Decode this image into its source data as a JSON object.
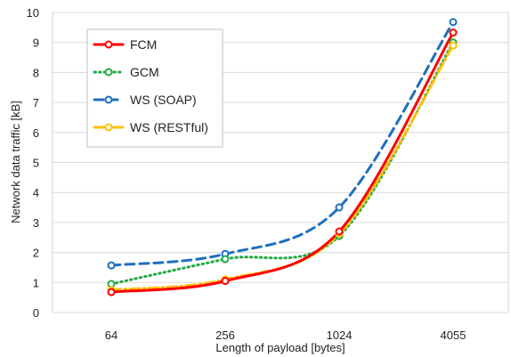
{
  "chart_data": {
    "type": "line",
    "title": "",
    "xlabel": "Length of payload [bytes]",
    "ylabel": "Network data traffic [kB]",
    "categories": [
      "64",
      "256",
      "1024",
      "4055"
    ],
    "ylim": [
      0,
      10
    ],
    "yticks": [
      0,
      1,
      2,
      3,
      4,
      5,
      6,
      7,
      8,
      9,
      10
    ],
    "grid": "horizontal",
    "legend_position": "top-left",
    "series": [
      {
        "name": "FCM",
        "values": [
          0.68,
          1.05,
          2.7,
          9.33
        ],
        "color": "#ff0000",
        "style": "solid"
      },
      {
        "name": "GCM",
        "values": [
          0.95,
          1.78,
          2.55,
          9.0
        ],
        "color": "#22aa44",
        "style": "dotted"
      },
      {
        "name": "WS (SOAP)",
        "values": [
          1.57,
          1.95,
          3.5,
          9.68
        ],
        "color": "#1f6fbf",
        "style": "dashed"
      },
      {
        "name": "WS (RESTful)",
        "values": [
          0.75,
          1.1,
          2.62,
          8.9
        ],
        "color": "#ffc000",
        "style": "dashdot"
      }
    ]
  }
}
